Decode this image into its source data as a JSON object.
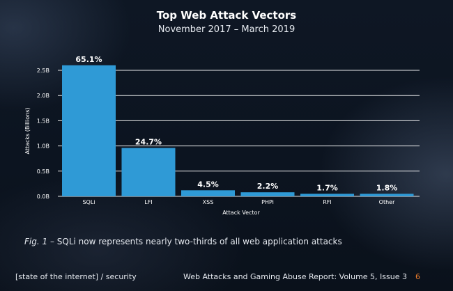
{
  "chart_data": {
    "type": "bar",
    "title": "Top Web Attack Vectors",
    "subtitle": "November 2017 – March 2019",
    "xlabel": "Attack Vector",
    "ylabel": "Attacks (Billions)",
    "ylim": [
      0,
      2.5
    ],
    "yticks": [
      0,
      0.5,
      1.0,
      1.5,
      2.0,
      2.5
    ],
    "ytick_labels": [
      "0.0B",
      "0.5B",
      "1.0B",
      "1.5B",
      "2.0B",
      "2.5B"
    ],
    "grid": true,
    "categories": [
      "SQLi",
      "LFI",
      "XSS",
      "PHPi",
      "RFI",
      "Other"
    ],
    "values": [
      2.6,
      0.96,
      0.12,
      0.08,
      0.05,
      0.05
    ],
    "data_labels": [
      "65.1%",
      "24.7%",
      "4.5%",
      "2.2%",
      "1.7%",
      "1.8%"
    ],
    "bar_color": "#2f9ad6"
  },
  "caption": {
    "fig": "Fig. 1",
    "dash": " – ",
    "text": "SQLi now represents nearly two-thirds of all web application attacks"
  },
  "footer": {
    "left": "[state of the internet] / security",
    "center": "Web Attacks and Gaming Abuse Report: Volume 5, Issue 3",
    "page": "6"
  }
}
